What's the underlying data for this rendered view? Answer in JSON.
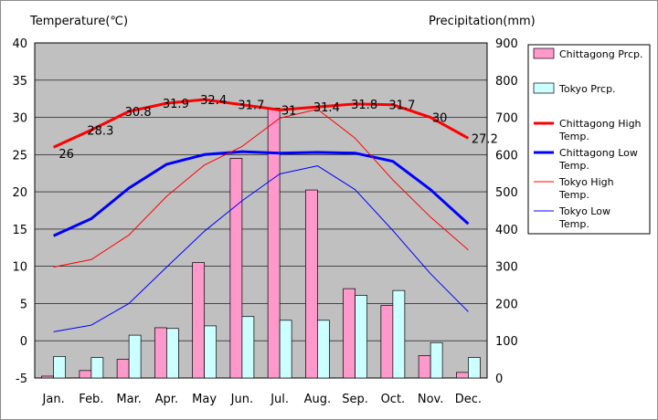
{
  "chart_data": {
    "type": "bar+line",
    "y_left_label": "Temperature(℃)",
    "y_right_label": "Precipitation(mm)",
    "ylim_left": [
      -5,
      40
    ],
    "ylim_right": [
      0,
      900
    ],
    "y_left_ticks": [
      -5,
      0,
      5,
      10,
      15,
      20,
      25,
      30,
      35,
      40
    ],
    "y_right_ticks": [
      0,
      100,
      200,
      300,
      400,
      500,
      600,
      700,
      800,
      900
    ],
    "categories": [
      "Jan.",
      "Feb.",
      "Mar.",
      "Apr.",
      "May",
      "Jun.",
      "Jul.",
      "Aug.",
      "Sep.",
      "Oct.",
      "Nov.",
      "Dec."
    ],
    "grid": true,
    "legend_position": "right",
    "bar_series": [
      {
        "name": "Chittagong Prcp.",
        "color": "#ff99cc",
        "values": [
          5,
          20,
          50,
          135,
          310,
          590,
          725,
          505,
          240,
          195,
          60,
          15
        ]
      },
      {
        "name": "Tokyo Prcp.",
        "color": "#ccffff",
        "values": [
          58,
          55,
          115,
          133,
          140,
          165,
          155,
          155,
          222,
          235,
          95,
          55
        ]
      }
    ],
    "line_series": [
      {
        "name": "Chittagong High Temp.",
        "color": "#ff0000",
        "width": 3,
        "values": [
          26,
          28.3,
          30.8,
          31.9,
          32.4,
          31.7,
          31,
          31.4,
          31.8,
          31.7,
          30,
          27.2
        ]
      },
      {
        "name": "Chittagong Low Temp.",
        "color": "#0000ff",
        "width": 3,
        "values": [
          14.1,
          16.4,
          20.5,
          23.7,
          25,
          25.4,
          25.2,
          25.3,
          25.2,
          24.1,
          20.3,
          15.7
        ]
      },
      {
        "name": "Tokyo High Temp.",
        "color": "#ff0000",
        "width": 1,
        "values": [
          9.9,
          10.9,
          14.2,
          19.4,
          23.6,
          26.1,
          29.9,
          31.1,
          27.2,
          21.6,
          16.6,
          12.2
        ]
      },
      {
        "name": "Tokyo Low Temp.",
        "color": "#0000ff",
        "width": 1,
        "values": [
          1.2,
          2.1,
          5,
          9.9,
          14.7,
          18.8,
          22.4,
          23.5,
          20.3,
          14.8,
          9,
          3.9
        ]
      }
    ],
    "data_labels": [
      "26",
      "28.3",
      "30.8",
      "31.9",
      "32.4",
      "31.7",
      "31",
      "31.4",
      "31.8",
      "31.7",
      "30",
      "27.2"
    ]
  }
}
